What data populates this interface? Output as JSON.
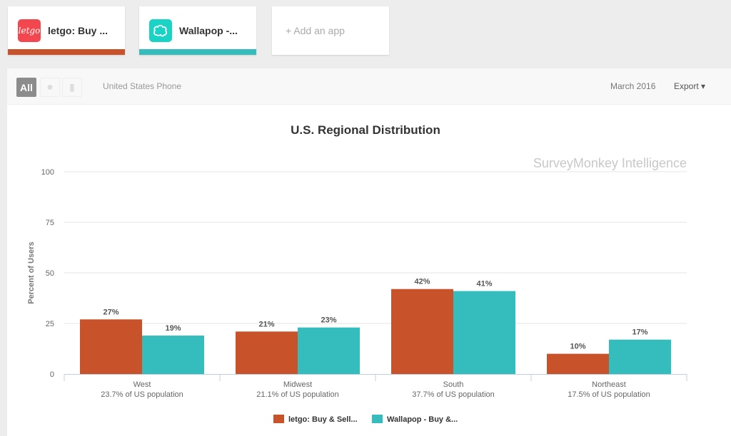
{
  "apps": [
    {
      "name": "letgo: Buy ...",
      "logo_text": "letgo",
      "color": "#c8532a",
      "logo_color": "#f2474e"
    },
    {
      "name": "Wallapop -...",
      "logo_text": "",
      "color": "#35bdbd",
      "logo_color": "#19d3c5"
    }
  ],
  "add_app": "+ Add an app",
  "toolbar": {
    "all": "All",
    "apple_icon": "apple-icon",
    "android_icon": "android-icon",
    "market": "United States Phone",
    "date": "March 2016",
    "export": "Export ▾"
  },
  "watermark": "SurveyMonkey Intelligence",
  "chart_data": {
    "type": "bar",
    "title": "U.S. Regional Distribution",
    "ylabel": "Percent of Users",
    "ylim": [
      0,
      100
    ],
    "yticks": [
      0,
      25,
      50,
      75,
      100
    ],
    "grid": true,
    "legend_position": "bottom",
    "categories": [
      "West",
      "Midwest",
      "South",
      "Northeast"
    ],
    "category_sublabels": [
      "23.7% of US population",
      "21.1% of US population",
      "37.7% of US population",
      "17.5% of US population"
    ],
    "series": [
      {
        "name": "letgo: Buy & Sell...",
        "color": "#c8532a",
        "values": [
          27,
          21,
          42,
          10
        ]
      },
      {
        "name": "Wallapop - Buy &...",
        "color": "#35bdbd",
        "values": [
          19,
          23,
          41,
          17
        ]
      }
    ]
  }
}
